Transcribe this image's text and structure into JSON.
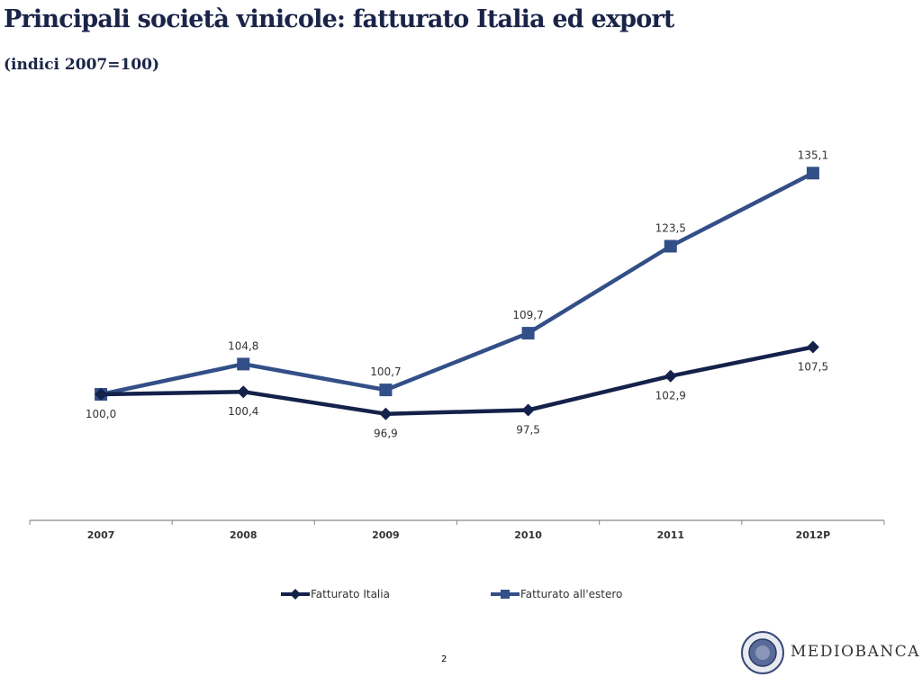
{
  "title": "Principali società vinicole: fatturato Italia ed export",
  "subtitle": "(indici 2007=100)",
  "page_number": "2",
  "logo": {
    "text": "MEDIOBANCA"
  },
  "colors": {
    "italia": "#14214a",
    "estero": "#334f88",
    "axis": "#888888",
    "title": "#1a2448"
  },
  "chart_data": {
    "type": "line",
    "categories": [
      "2007",
      "2008",
      "2009",
      "2010",
      "2011",
      "2012P"
    ],
    "ylim": [
      80,
      140
    ],
    "grid": false,
    "legend_position": "bottom",
    "series": [
      {
        "name": "Fatturato Italia",
        "marker": "diamond",
        "values": [
          100.0,
          100.4,
          96.9,
          97.5,
          102.9,
          107.5
        ],
        "labels": [
          "100,0",
          "100,4",
          "96,9",
          "97,5",
          "102,9",
          "107,5"
        ]
      },
      {
        "name": "Fatturato all'estero",
        "marker": "square",
        "values": [
          100.0,
          104.8,
          100.7,
          109.7,
          123.5,
          135.1
        ],
        "labels": [
          "",
          "104,8",
          "100,7",
          "109,7",
          "123,5",
          "135,1"
        ]
      }
    ]
  }
}
